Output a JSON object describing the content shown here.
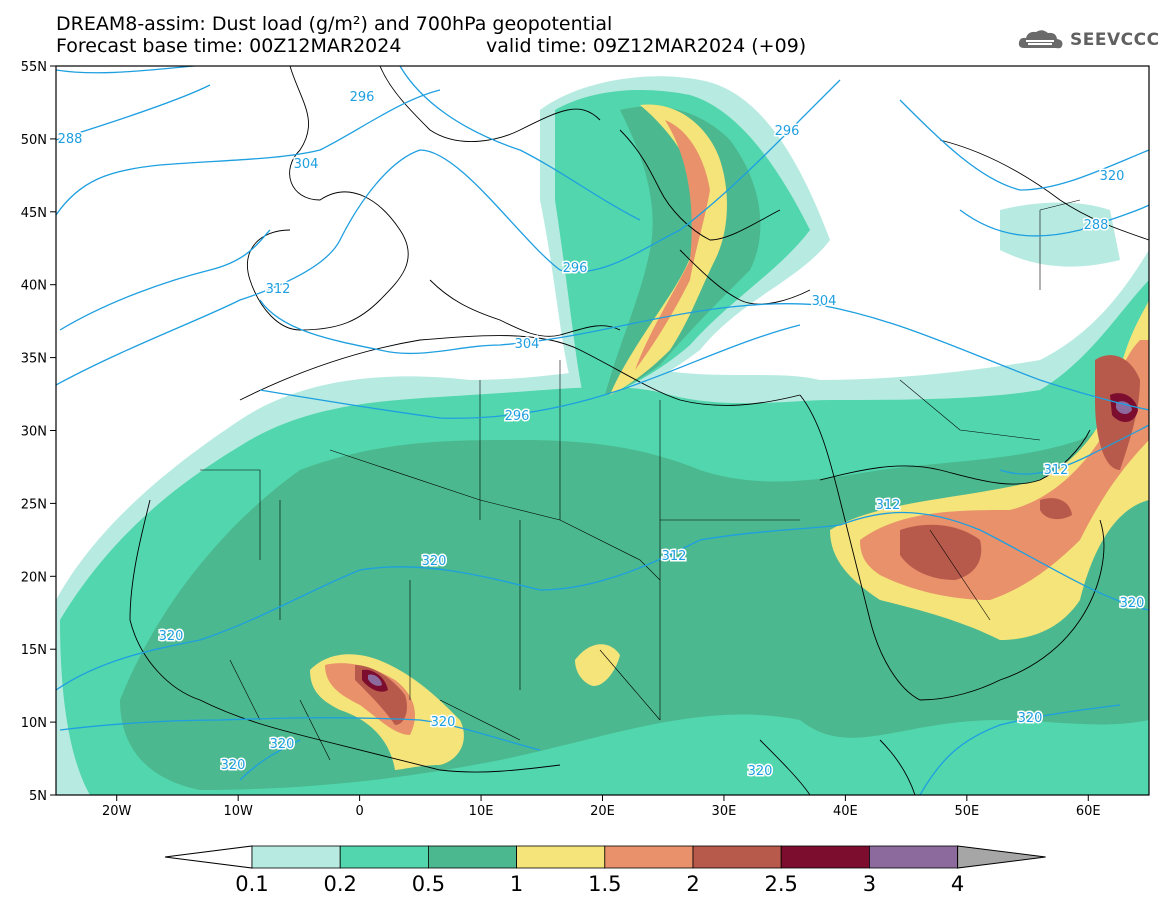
{
  "title": {
    "line1": "DREAM8-assim: Dust load (g/m²) and 700hPa geopotential",
    "line2": "Forecast base time: 00Z12MAR2024",
    "line2_valid": "valid time: 09Z12MAR2024 (+09)"
  },
  "logo": {
    "text": "SEEVCCC",
    "icon": "cloud-icon"
  },
  "map": {
    "lon_range": [
      -25,
      65
    ],
    "lat_range": [
      5,
      55
    ],
    "x_ticks": [
      "20W",
      "10W",
      "0",
      "10E",
      "20E",
      "30E",
      "40E",
      "50E",
      "60E"
    ],
    "y_ticks": [
      "55N",
      "50N",
      "45N",
      "40N",
      "35N",
      "30N",
      "25N",
      "20N",
      "15N",
      "10N",
      "5N"
    ],
    "contour_labels": [
      "288",
      "296",
      "304",
      "296",
      "304",
      "296",
      "312",
      "304",
      "312",
      "312",
      "312",
      "320",
      "320",
      "320",
      "320",
      "320",
      "320",
      "320",
      "320",
      "320",
      "288",
      "296"
    ]
  },
  "colorbar": {
    "labels": [
      "0.1",
      "0.2",
      "0.5",
      "1",
      "1.5",
      "2",
      "2.5",
      "3",
      "4"
    ],
    "colors": [
      "#ffffff",
      "#b7ebe1",
      "#52d6ad",
      "#4bb88f",
      "#f5e47a",
      "#e9916a",
      "#b85a4b",
      "#7c0d2e",
      "#8c6a9e",
      "#a6a6a6"
    ]
  }
}
